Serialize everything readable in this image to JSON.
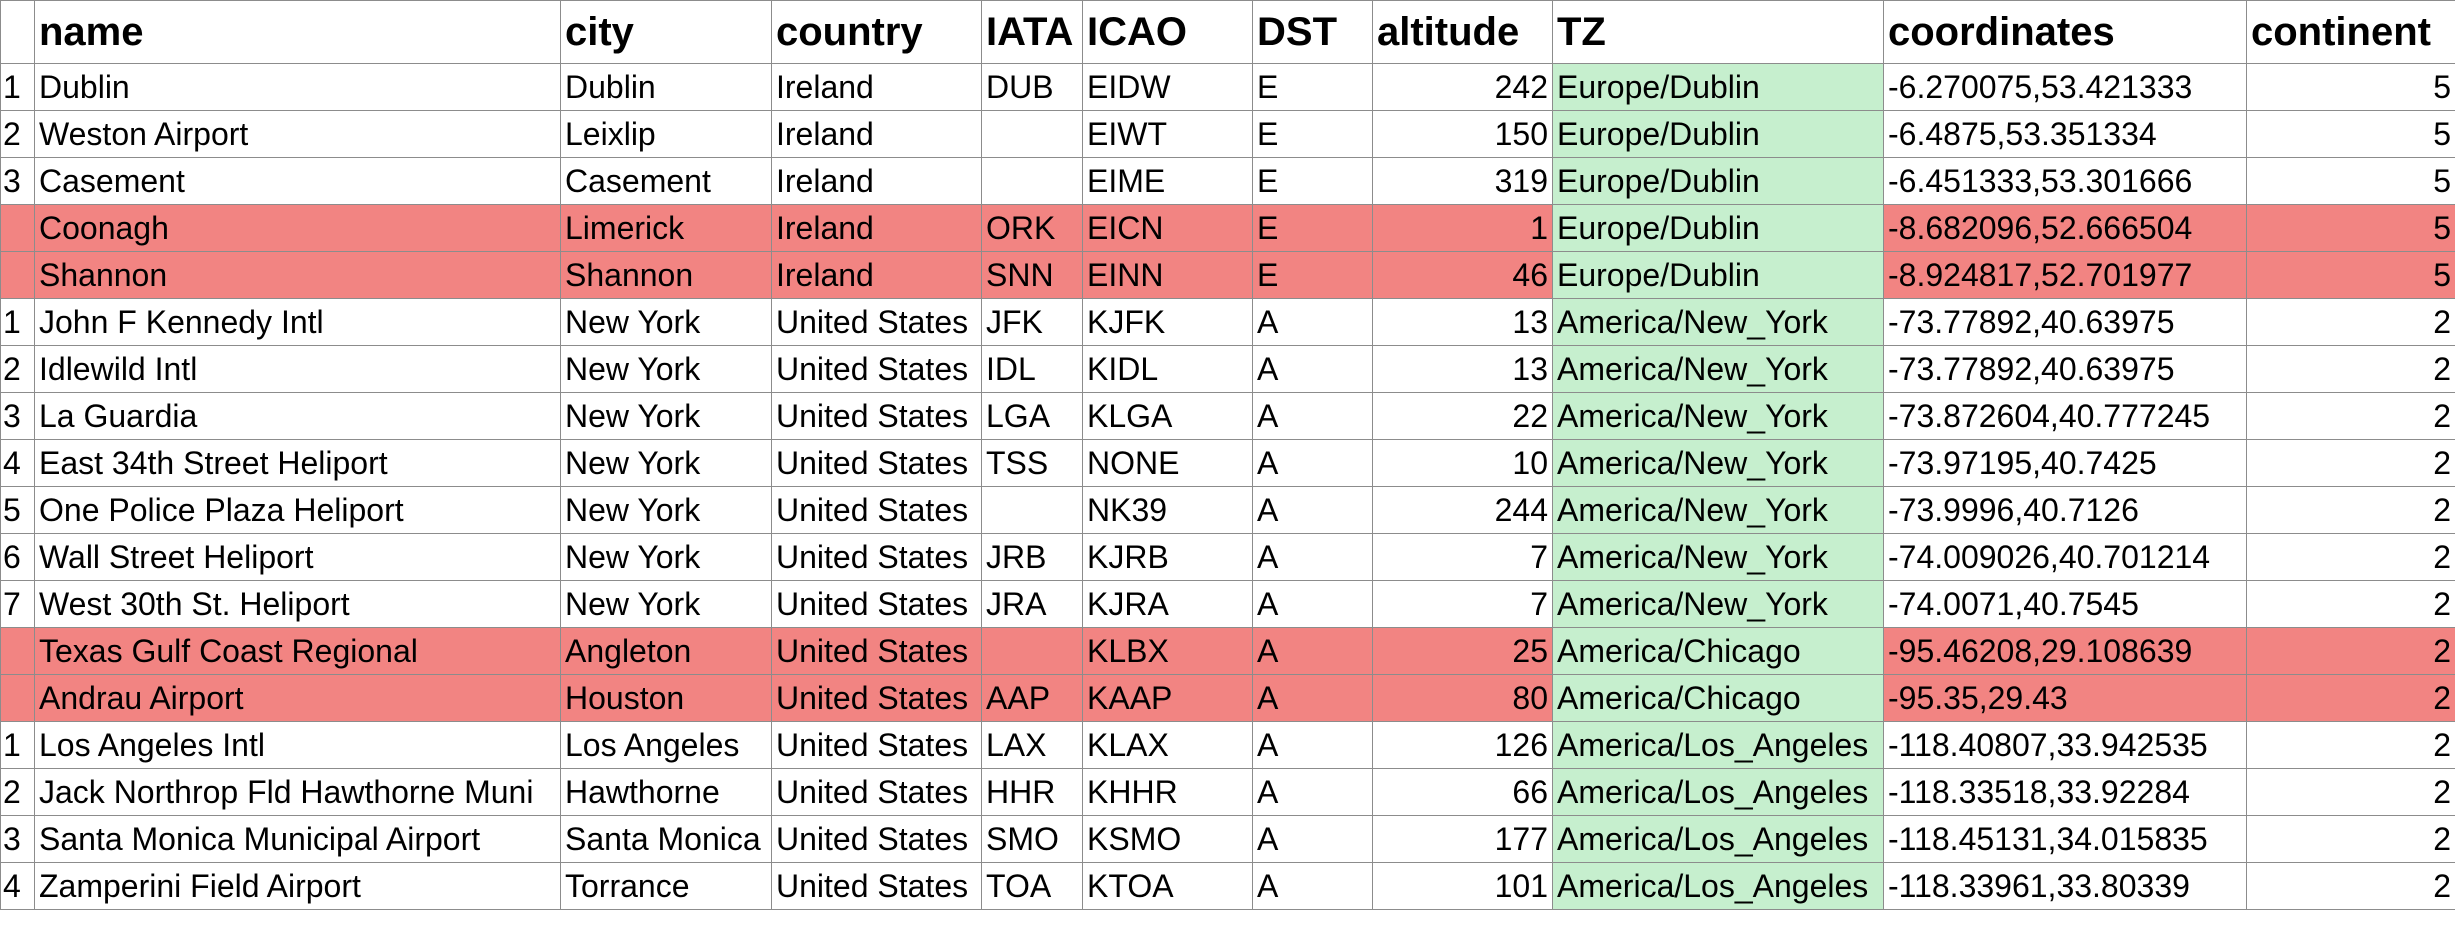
{
  "sheet": {
    "headers": {
      "index": "",
      "name": "name",
      "city": "city",
      "country": "country",
      "iata": "IATA",
      "icao": "ICAO",
      "dst": "DST",
      "altitude": "altitude",
      "tz": "TZ",
      "coordinates": "coordinates",
      "continent": "continent"
    },
    "highlight_color": "#f28482",
    "tz_fill_color": "#c6efce",
    "rows": [
      {
        "index": "1",
        "name": "Dublin",
        "city": "Dublin",
        "country": "Ireland",
        "iata": "DUB",
        "icao": "EIDW",
        "dst": "E",
        "altitude": "242",
        "tz": "Europe/Dublin",
        "coordinates": "-6.270075,53.421333",
        "continent": "5",
        "highlighted": false
      },
      {
        "index": "2",
        "name": "Weston Airport",
        "city": "Leixlip",
        "country": "Ireland",
        "iata": "",
        "icao": "EIWT",
        "dst": "E",
        "altitude": "150",
        "tz": "Europe/Dublin",
        "coordinates": "-6.4875,53.351334",
        "continent": "5",
        "highlighted": false
      },
      {
        "index": "3",
        "name": "Casement",
        "city": "Casement",
        "country": "Ireland",
        "iata": "",
        "icao": "EIME",
        "dst": "E",
        "altitude": "319",
        "tz": "Europe/Dublin",
        "coordinates": "-6.451333,53.301666",
        "continent": "5",
        "highlighted": false
      },
      {
        "index": "",
        "name": "Coonagh",
        "city": "Limerick",
        "country": "Ireland",
        "iata": "ORK",
        "icao": "EICN",
        "dst": "E",
        "altitude": "1",
        "tz": "Europe/Dublin",
        "coordinates": "-8.682096,52.666504",
        "continent": "5",
        "highlighted": true
      },
      {
        "index": "",
        "name": "Shannon",
        "city": "Shannon",
        "country": "Ireland",
        "iata": "SNN",
        "icao": "EINN",
        "dst": "E",
        "altitude": "46",
        "tz": "Europe/Dublin",
        "coordinates": "-8.924817,52.701977",
        "continent": "5",
        "highlighted": true
      },
      {
        "index": "1",
        "name": "John F Kennedy Intl",
        "city": "New York",
        "country": "United States",
        "iata": "JFK",
        "icao": "KJFK",
        "dst": "A",
        "altitude": "13",
        "tz": "America/New_York",
        "coordinates": "-73.77892,40.63975",
        "continent": "2",
        "highlighted": false
      },
      {
        "index": "2",
        "name": "Idlewild Intl",
        "city": "New York",
        "country": "United States",
        "iata": "IDL",
        "icao": "KIDL",
        "dst": "A",
        "altitude": "13",
        "tz": "America/New_York",
        "coordinates": "-73.77892,40.63975",
        "continent": "2",
        "highlighted": false
      },
      {
        "index": "3",
        "name": "La Guardia",
        "city": "New York",
        "country": "United States",
        "iata": "LGA",
        "icao": "KLGA",
        "dst": "A",
        "altitude": "22",
        "tz": "America/New_York",
        "coordinates": "-73.872604,40.777245",
        "continent": "2",
        "highlighted": false
      },
      {
        "index": "4",
        "name": "East 34th Street Heliport",
        "city": "New York",
        "country": "United States",
        "iata": "TSS",
        "icao": "NONE",
        "dst": "A",
        "altitude": "10",
        "tz": "America/New_York",
        "coordinates": "-73.97195,40.7425",
        "continent": "2",
        "highlighted": false
      },
      {
        "index": "5",
        "name": "One Police Plaza Heliport",
        "city": "New York",
        "country": "United States",
        "iata": "",
        "icao": "NK39",
        "dst": "A",
        "altitude": "244",
        "tz": "America/New_York",
        "coordinates": "-73.9996,40.7126",
        "continent": "2",
        "highlighted": false
      },
      {
        "index": "6",
        "name": "Wall Street Heliport",
        "city": "New York",
        "country": "United States",
        "iata": "JRB",
        "icao": "KJRB",
        "dst": "A",
        "altitude": "7",
        "tz": "America/New_York",
        "coordinates": "-74.009026,40.701214",
        "continent": "2",
        "highlighted": false
      },
      {
        "index": "7",
        "name": "West 30th St. Heliport",
        "city": "New York",
        "country": "United States",
        "iata": "JRA",
        "icao": "KJRA",
        "dst": "A",
        "altitude": "7",
        "tz": "America/New_York",
        "coordinates": "-74.0071,40.7545",
        "continent": "2",
        "highlighted": false
      },
      {
        "index": "",
        "name": "Texas Gulf Coast Regional",
        "city": "Angleton",
        "country": "United States",
        "iata": "",
        "icao": "KLBX",
        "dst": "A",
        "altitude": "25",
        "tz": "America/Chicago",
        "coordinates": "-95.46208,29.108639",
        "continent": "2",
        "highlighted": true
      },
      {
        "index": "",
        "name": "Andrau Airport",
        "city": "Houston",
        "country": "United States",
        "iata": "AAP",
        "icao": "KAAP",
        "dst": "A",
        "altitude": "80",
        "tz": "America/Chicago",
        "coordinates": "-95.35,29.43",
        "continent": "2",
        "highlighted": true
      },
      {
        "index": "1",
        "name": "Los Angeles Intl",
        "city": "Los Angeles",
        "country": "United States",
        "iata": "LAX",
        "icao": "KLAX",
        "dst": "A",
        "altitude": "126",
        "tz": "America/Los_Angeles",
        "coordinates": "-118.40807,33.942535",
        "continent": "2",
        "highlighted": false
      },
      {
        "index": "2",
        "name": "Jack Northrop Fld Hawthorne Muni",
        "city": "Hawthorne",
        "country": "United States",
        "iata": "HHR",
        "icao": "KHHR",
        "dst": "A",
        "altitude": "66",
        "tz": "America/Los_Angeles",
        "coordinates": "-118.33518,33.92284",
        "continent": "2",
        "highlighted": false
      },
      {
        "index": "3",
        "name": "Santa Monica Municipal Airport",
        "city": "Santa Monica",
        "country": "United States",
        "iata": "SMO",
        "icao": "KSMO",
        "dst": "A",
        "altitude": "177",
        "tz": "America/Los_Angeles",
        "coordinates": "-118.45131,34.015835",
        "continent": "2",
        "highlighted": false
      },
      {
        "index": "4",
        "name": "Zamperini Field Airport",
        "city": "Torrance",
        "country": "United States",
        "iata": "TOA",
        "icao": "KTOA",
        "dst": "A",
        "altitude": "101",
        "tz": "America/Los_Angeles",
        "coordinates": "-118.33961,33.80339",
        "continent": "2",
        "highlighted": false
      }
    ]
  }
}
